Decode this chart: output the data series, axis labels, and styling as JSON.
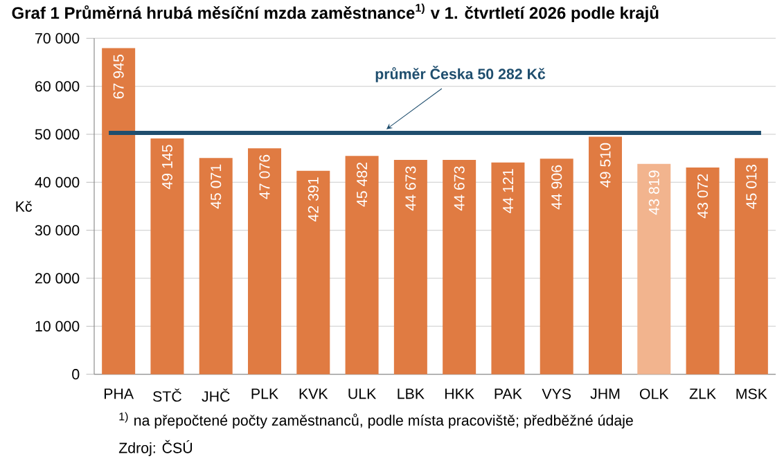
{
  "chart_data": {
    "type": "bar",
    "title": "Graf 1 Průměrná hrubá měsíční mzda zaměstnance$^{1)}$ v 1. čtvrtletí 2026 podle krajů",
    "ylabel": "Kč",
    "categories": [
      "PHA",
      "STČ",
      "JHČ",
      "PLK",
      "KVK",
      "ULK",
      "LBK",
      "HKK",
      "PAK",
      "VYS",
      "JHM",
      "OLK",
      "ZLK",
      "MSK"
    ],
    "values": [
      67945,
      49145,
      45071,
      47076,
      42391,
      45482,
      44673,
      44673,
      44121,
      44906,
      49510,
      43819,
      43072,
      45013
    ],
    "value_labels": [
      "67 945",
      "49 145",
      "45 071",
      "47 076",
      "42 391",
      "45 482",
      "44 673",
      "44 673",
      "44 121",
      "44 906",
      "49 510",
      "43 819",
      "43 072",
      "45 013"
    ],
    "colors": [
      "#e07b42",
      "#e07b42",
      "#e07b42",
      "#e07b42",
      "#e07b42",
      "#e07b42",
      "#e07b42",
      "#e07b42",
      "#e07b42",
      "#e07b42",
      "#e07b42",
      "#f2b48e",
      "#e07b42",
      "#e07b42"
    ],
    "ylim": [
      0,
      70000
    ],
    "yticks": [
      0,
      {
        "value": 10000,
        "label": "10 000"
      },
      {
        "value": 20000,
        "label": "20 000"
      },
      {
        "value": 30000,
        "label": "30 000"
      },
      {
        "value": 40000,
        "label": "40 000"
      },
      {
        "value": 50000,
        "label": "50 000"
      },
      {
        "value": 60000,
        "label": "60 000"
      },
      {
        "value": 70000,
        "label": "70 000"
      }
    ],
    "grid": "y",
    "ref_lines": [
      {
        "axis": "y",
        "value": 50282,
        "label": "průměr Česka 50 282 Kč",
        "color": "#1f4e6e"
      }
    ],
    "annotations": [
      "$^{1)}$ na přepočtené počty zaměstnanců, podle místa pracoviště; předběžné údaje",
      "Zdroj: ČSÚ"
    ]
  }
}
